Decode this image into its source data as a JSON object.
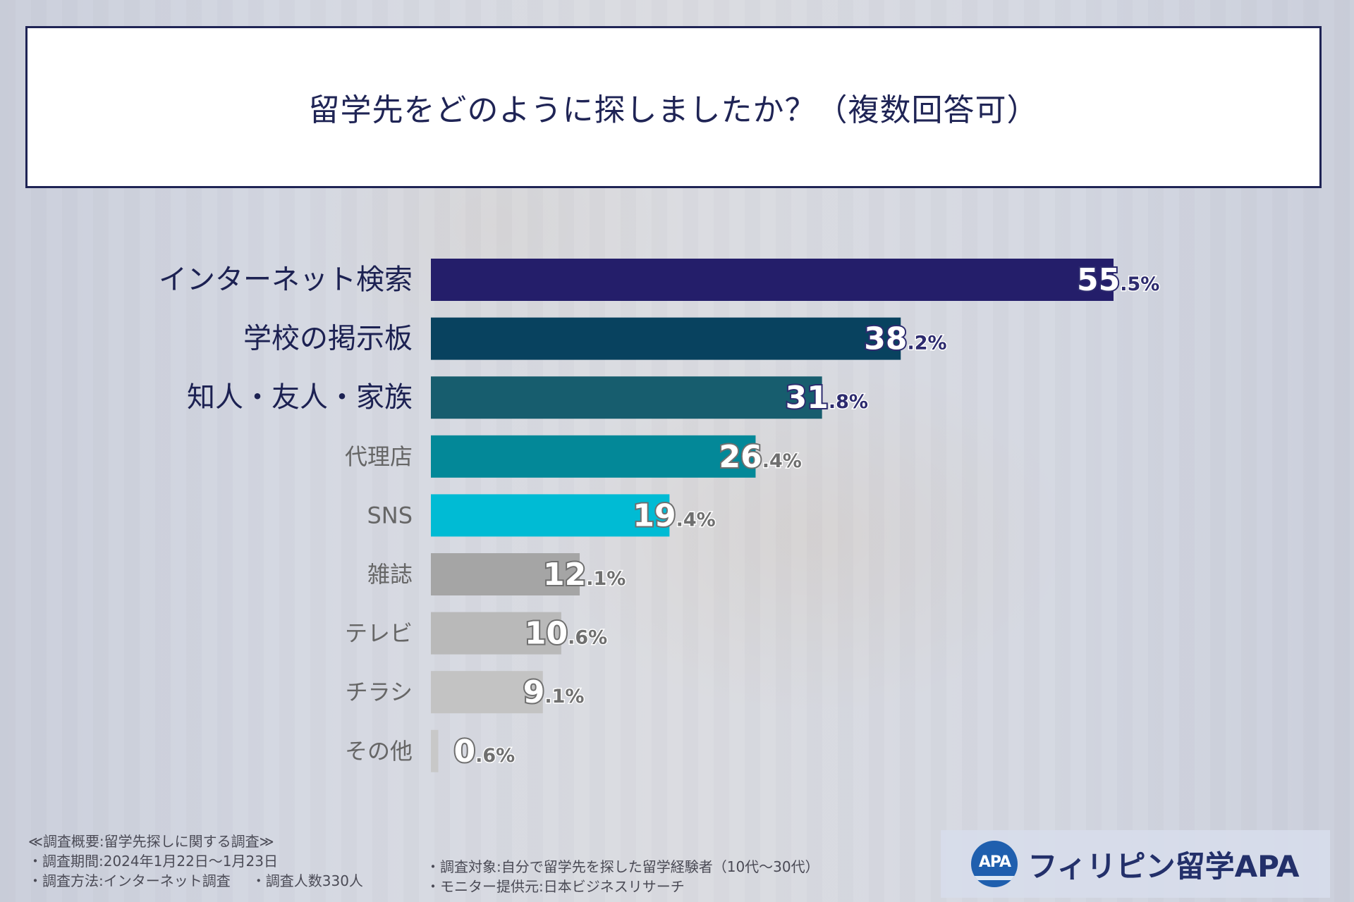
{
  "title": "留学先をどのように探しましたか？（複数回答可）",
  "chart_data": {
    "type": "bar",
    "orientation": "horizontal",
    "categories": [
      "インターネット検索",
      "学校の掲示板",
      "知人・友人・家族",
      "代理店",
      "SNS",
      "雑誌",
      "テレビ",
      "チラシ",
      "その他"
    ],
    "values": [
      55.5,
      38.2,
      31.8,
      26.4,
      19.4,
      12.1,
      10.6,
      9.1,
      0.6
    ],
    "value_int": [
      "55",
      "38",
      "31",
      "26",
      "19",
      "12",
      "10",
      "9",
      "0"
    ],
    "value_dec": [
      ".5%",
      ".2%",
      ".8%",
      ".4%",
      ".4%",
      ".1%",
      ".6%",
      ".1%",
      ".6%"
    ],
    "unit": "%",
    "xlim": [
      0,
      55.5
    ],
    "bar_colors": [
      "#241e6a",
      "#08425f",
      "#175d6e",
      "#038898",
      "#00bbd4",
      "#a5a5a5",
      "#b9b9b9",
      "#c3c3c3",
      "#c8c8c8"
    ],
    "label_colors": [
      "#1c2152",
      "#1c2152",
      "#1c2152",
      "#666666",
      "#666666",
      "#666666",
      "#666666",
      "#666666",
      "#666666"
    ],
    "value_colors": [
      "#2d2b6e",
      "#2d2b6e",
      "#2d2b6e",
      "#6f6f6f",
      "#6f6f6f",
      "#6f6f6f",
      "#6f6f6f",
      "#6f6f6f",
      "#6f6f6f"
    ],
    "emphasized": [
      true,
      true,
      true,
      false,
      false,
      false,
      false,
      false,
      false
    ]
  },
  "footer": {
    "overview": "≪調査概要:留学先探しに関する調査≫",
    "period": "・調査期間:2024年1月22日～1月23日",
    "method": "・調査方法:インターネット調査",
    "respondents": "・調査人数330人",
    "target": "・調査対象:自分で留学先を探した留学経験者（10代～30代）",
    "provider": "・モニター提供元:日本ビジネスリサーチ"
  },
  "brand": {
    "logo_text": "APA",
    "name": "フィリピン留学APA"
  }
}
